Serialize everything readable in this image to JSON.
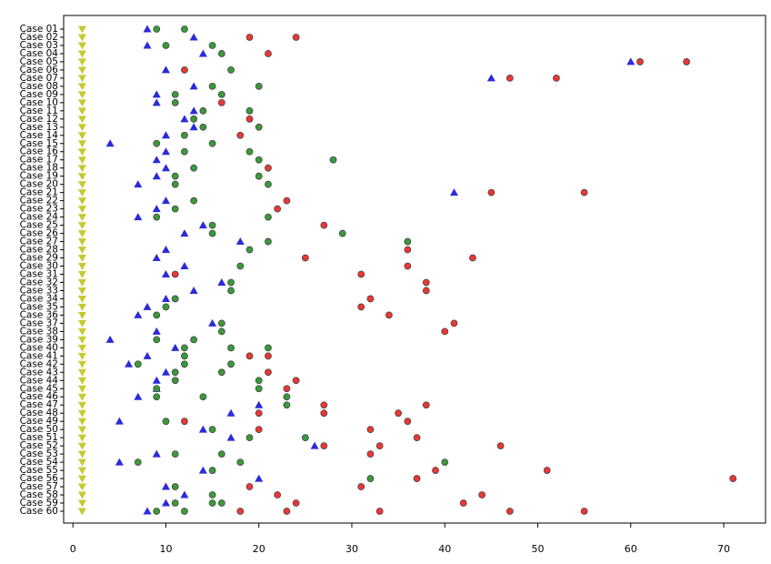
{
  "chart_data": {
    "type": "dot-scatter",
    "categories": [
      "Case 01",
      "Case 02",
      "Case 03",
      "Case 04",
      "Case 05",
      "Case 06",
      "Case 07",
      "Case 08",
      "Case 09",
      "Case 10",
      "Case 11",
      "Case 12",
      "Case 13",
      "Case 14",
      "Case 15",
      "Case 16",
      "Case 17",
      "Case 18",
      "Case 19",
      "Case 20",
      "Case 21",
      "Case 22",
      "Case 23",
      "Case 24",
      "Case 25",
      "Case 26",
      "Case 27",
      "Case 28",
      "Case 29",
      "Case 30",
      "Case 31",
      "Case 32",
      "Case 33",
      "Case 34",
      "Case 35",
      "Case 36",
      "Case 37",
      "Case 38",
      "Case 39",
      "Case 40",
      "Case 41",
      "Case 42",
      "Case 43",
      "Case 44",
      "Case 45",
      "Case 46",
      "Case 47",
      "Case 48",
      "Case 49",
      "Case 50",
      "Case 51",
      "Case 52",
      "Case 53",
      "Case 54",
      "Case 55",
      "Case 56",
      "Case 57",
      "Case 58",
      "Case 59",
      "Case 60"
    ],
    "xlim": [
      -1,
      74.5
    ],
    "xticks": [
      0,
      10,
      20,
      30,
      40,
      50,
      60,
      70
    ],
    "series": [
      {
        "color": "#c8c832",
        "marker": "triangle-down",
        "values": [
          [
            1
          ],
          [
            1
          ],
          [
            1
          ],
          [
            1
          ],
          [
            1
          ],
          [
            1
          ],
          [
            1
          ],
          [
            1
          ],
          [
            1
          ],
          [
            1
          ],
          [
            1
          ],
          [
            1
          ],
          [
            1
          ],
          [
            1
          ],
          [
            1
          ],
          [
            1
          ],
          [
            1
          ],
          [
            1
          ],
          [
            1
          ],
          [
            1
          ],
          [
            1
          ],
          [
            1
          ],
          [
            1
          ],
          [
            1
          ],
          [
            1
          ],
          [
            1
          ],
          [
            1
          ],
          [
            1
          ],
          [
            1
          ],
          [
            1
          ],
          [
            1
          ],
          [
            1
          ],
          [
            1
          ],
          [
            1
          ],
          [
            1
          ],
          [
            1
          ],
          [
            1
          ],
          [
            1
          ],
          [
            1
          ],
          [
            1
          ],
          [
            1
          ],
          [
            1
          ],
          [
            1
          ],
          [
            1
          ],
          [
            1
          ],
          [
            1
          ],
          [
            1
          ],
          [
            1
          ],
          [
            1
          ],
          [
            1
          ],
          [
            1
          ],
          [
            1
          ],
          [
            1
          ],
          [
            1
          ],
          [
            1
          ],
          [
            1
          ],
          [
            1
          ],
          [
            1
          ],
          [
            1
          ],
          [
            1
          ]
        ]
      },
      {
        "color": "#2b2bd9",
        "marker": "triangle-up",
        "values": [
          [
            8
          ],
          [
            13
          ],
          [
            8
          ],
          [
            14
          ],
          [
            60
          ],
          [
            10
          ],
          [
            45
          ],
          [
            13
          ],
          [
            9
          ],
          [
            9
          ],
          [
            13
          ],
          [
            12
          ],
          [
            13
          ],
          [
            10
          ],
          [
            4
          ],
          [
            10
          ],
          [
            9
          ],
          [
            10
          ],
          [
            9
          ],
          [
            7
          ],
          [
            41
          ],
          [
            10
          ],
          [
            9
          ],
          [
            7
          ],
          [
            14
          ],
          [
            12
          ],
          [
            18
          ],
          [
            10
          ],
          [
            9
          ],
          [
            12
          ],
          [
            10
          ],
          [
            16
          ],
          [
            13
          ],
          [
            10
          ],
          [
            8
          ],
          [
            7
          ],
          [
            15
          ],
          [
            9
          ],
          [
            4
          ],
          [
            11
          ],
          [
            8
          ],
          [
            6
          ],
          [
            10
          ],
          [
            9
          ],
          [
            9
          ],
          [
            7
          ],
          [
            20
          ],
          [
            17
          ],
          [
            5
          ],
          [
            14
          ],
          [
            17
          ],
          [
            26
          ],
          [
            9
          ],
          [
            5
          ],
          [
            14
          ],
          [
            20
          ],
          [
            10
          ],
          [
            12
          ],
          [
            10
          ],
          [
            8
          ]
        ]
      },
      {
        "color": "#3a9a3a",
        "marker": "circle",
        "values": [
          [
            9,
            12
          ],
          [],
          [
            10,
            15
          ],
          [
            16
          ],
          [],
          [
            17
          ],
          [],
          [
            15,
            20
          ],
          [
            11,
            16
          ],
          [
            11
          ],
          [
            14,
            19
          ],
          [
            13
          ],
          [
            14,
            20
          ],
          [
            12
          ],
          [
            9,
            15
          ],
          [
            12,
            19
          ],
          [
            20,
            28
          ],
          [
            13
          ],
          [
            11,
            20
          ],
          [
            11,
            21
          ],
          [],
          [
            13
          ],
          [
            11
          ],
          [
            9,
            21
          ],
          [
            15
          ],
          [
            15,
            29
          ],
          [
            21,
            36
          ],
          [
            19
          ],
          [],
          [
            18
          ],
          [],
          [
            17
          ],
          [
            17
          ],
          [
            11
          ],
          [
            10
          ],
          [
            9
          ],
          [
            16
          ],
          [
            16
          ],
          [
            9,
            13
          ],
          [
            12,
            17,
            21
          ],
          [
            12
          ],
          [
            7,
            12,
            17
          ],
          [
            11,
            16
          ],
          [
            11,
            20
          ],
          [
            9,
            20
          ],
          [
            9,
            14,
            23
          ],
          [
            23
          ],
          [],
          [
            10
          ],
          [
            15
          ],
          [
            19,
            25
          ],
          [],
          [
            11,
            16
          ],
          [
            7,
            18,
            40
          ],
          [
            15
          ],
          [
            32
          ],
          [
            11
          ],
          [
            15
          ],
          [
            11,
            15,
            16
          ],
          [
            9,
            12
          ]
        ]
      },
      {
        "color": "#ee3535",
        "marker": "circle",
        "values": [
          [],
          [
            19,
            24
          ],
          [],
          [
            21
          ],
          [
            61,
            66
          ],
          [
            12
          ],
          [
            47,
            52
          ],
          [],
          [],
          [
            16
          ],
          [],
          [
            19
          ],
          [],
          [
            18
          ],
          [],
          [],
          [],
          [
            21
          ],
          [],
          [],
          [
            45,
            55
          ],
          [
            23
          ],
          [
            22
          ],
          [],
          [
            27
          ],
          [],
          [],
          [
            36
          ],
          [
            25,
            43
          ],
          [
            36
          ],
          [
            11,
            31
          ],
          [
            38
          ],
          [
            38
          ],
          [
            32
          ],
          [
            31
          ],
          [
            34
          ],
          [
            41
          ],
          [
            40
          ],
          [],
          [],
          [
            19,
            21
          ],
          [],
          [
            21
          ],
          [
            24
          ],
          [
            23
          ],
          [],
          [
            27,
            38
          ],
          [
            20,
            27,
            35
          ],
          [
            12,
            36
          ],
          [
            20,
            32
          ],
          [
            37
          ],
          [
            27,
            33,
            46
          ],
          [
            32
          ],
          [],
          [
            39,
            51
          ],
          [
            37,
            71
          ],
          [
            19,
            31
          ],
          [
            22,
            44
          ],
          [
            24,
            42
          ],
          [
            18,
            23,
            33,
            47,
            55
          ]
        ]
      }
    ]
  }
}
